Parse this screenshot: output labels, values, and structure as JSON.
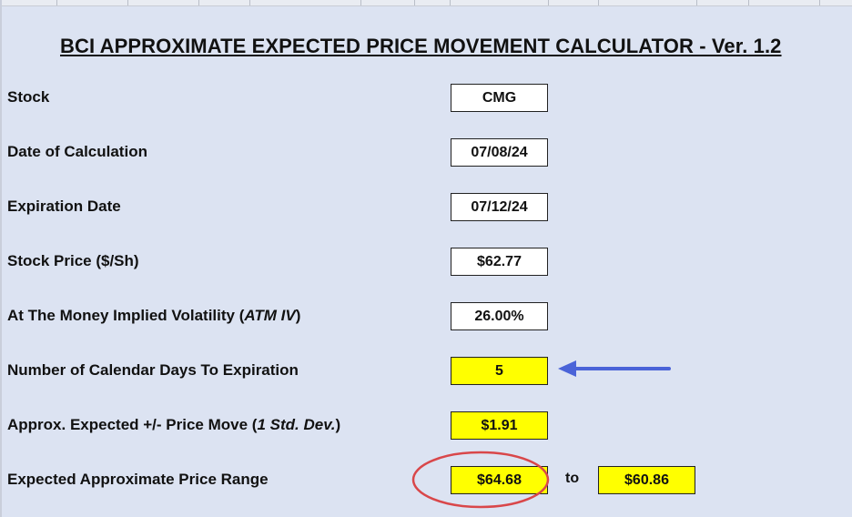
{
  "title": "BCI APPROXIMATE EXPECTED PRICE MOVEMENT CALCULATOR - Ver. 1.2",
  "rows": [
    {
      "label": "Stock",
      "label_italic": "",
      "label_suffix": "",
      "value": "CMG",
      "highlight": false
    },
    {
      "label": "Date of Calculation",
      "label_italic": "",
      "label_suffix": "",
      "value": "07/08/24",
      "highlight": false
    },
    {
      "label": "Expiration Date",
      "label_italic": "",
      "label_suffix": "",
      "value": "07/12/24",
      "highlight": false
    },
    {
      "label": "Stock Price ($/Sh)",
      "label_italic": "",
      "label_suffix": "",
      "value": "$62.77",
      "highlight": false
    },
    {
      "label": "At The Money Implied Volatility (",
      "label_italic": "ATM IV",
      "label_suffix": ")",
      "value": "26.00%",
      "highlight": false
    },
    {
      "label": "Number of Calendar Days To Expiration",
      "label_italic": "",
      "label_suffix": "",
      "value": "5",
      "highlight": true
    },
    {
      "label": "Approx. Expected +/- Price Move (",
      "label_italic": "1 Std. Dev.",
      "label_suffix": ")",
      "value": "$1.91",
      "highlight": true
    },
    {
      "label": "Expected Approximate Price Range",
      "label_italic": "",
      "label_suffix": "",
      "value": "$64.68",
      "highlight": true
    }
  ],
  "range": {
    "separator": "to",
    "low_value": "$60.86"
  },
  "annotations": {
    "arrow_color": "#4a63d8",
    "circle_color": "#d9474a"
  },
  "colors": {
    "background": "#dce3f2",
    "input_cell": "#ffffff",
    "output_cell": "#ffff00"
  }
}
